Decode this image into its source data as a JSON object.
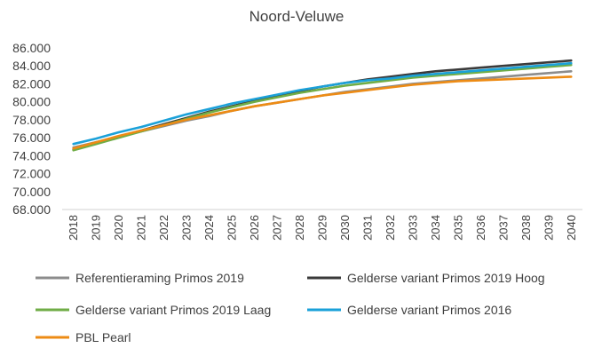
{
  "chart_data": {
    "type": "line",
    "title": "Noord-Veluwe",
    "xlabel": "",
    "ylabel": "",
    "ylim": [
      68000,
      86000
    ],
    "ytick_values": [
      68000,
      70000,
      72000,
      74000,
      76000,
      78000,
      80000,
      82000,
      84000,
      86000
    ],
    "ytick_labels": [
      "68.000",
      "70.000",
      "72.000",
      "74.000",
      "76.000",
      "78.000",
      "80.000",
      "82.000",
      "84.000",
      "86.000"
    ],
    "x": [
      "2018",
      "2019",
      "2020",
      "2021",
      "2022",
      "2023",
      "2024",
      "2025",
      "2026",
      "2027",
      "2028",
      "2029",
      "2030",
      "2031",
      "2032",
      "2033",
      "2034",
      "2035",
      "2036",
      "2037",
      "2038",
      "2039",
      "2040"
    ],
    "grid": false,
    "legend_position": "bottom",
    "series": [
      {
        "name": "Referentieraming Primos 2019",
        "color": "#8c8c8c",
        "values": [
          74900,
          75500,
          76100,
          76700,
          77300,
          77900,
          78400,
          79000,
          79500,
          79900,
          80300,
          80700,
          81100,
          81400,
          81700,
          82000,
          82200,
          82400,
          82600,
          82800,
          83000,
          83200,
          83400
        ]
      },
      {
        "name": "Gelderse variant Primos 2019 Hoog",
        "color": "#3a3a3a",
        "values": [
          74700,
          75400,
          76100,
          76800,
          77500,
          78200,
          78900,
          79500,
          80100,
          80700,
          81200,
          81700,
          82100,
          82500,
          82800,
          83100,
          83400,
          83600,
          83800,
          84000,
          84200,
          84400,
          84600
        ]
      },
      {
        "name": "Gelderse variant Primos 2019 Laag",
        "color": "#70ad47",
        "values": [
          74600,
          75300,
          76000,
          76700,
          77400,
          78100,
          78800,
          79400,
          80000,
          80500,
          81000,
          81400,
          81800,
          82100,
          82400,
          82700,
          82900,
          83100,
          83300,
          83500,
          83700,
          83900,
          84100
        ]
      },
      {
        "name": "Gelderse variant Primos 2016",
        "color": "#1ba1d9",
        "values": [
          75300,
          75900,
          76600,
          77200,
          77900,
          78600,
          79200,
          79800,
          80300,
          80800,
          81300,
          81700,
          82100,
          82400,
          82600,
          82900,
          83100,
          83300,
          83500,
          83700,
          83900,
          84100,
          84300
        ]
      },
      {
        "name": "PBL Pearl",
        "color": "#ed8b14",
        "values": [
          74800,
          75500,
          76200,
          76800,
          77400,
          78000,
          78500,
          79000,
          79500,
          79900,
          80300,
          80700,
          81000,
          81300,
          81600,
          81900,
          82100,
          82300,
          82400,
          82500,
          82600,
          82700,
          82800
        ]
      }
    ]
  }
}
